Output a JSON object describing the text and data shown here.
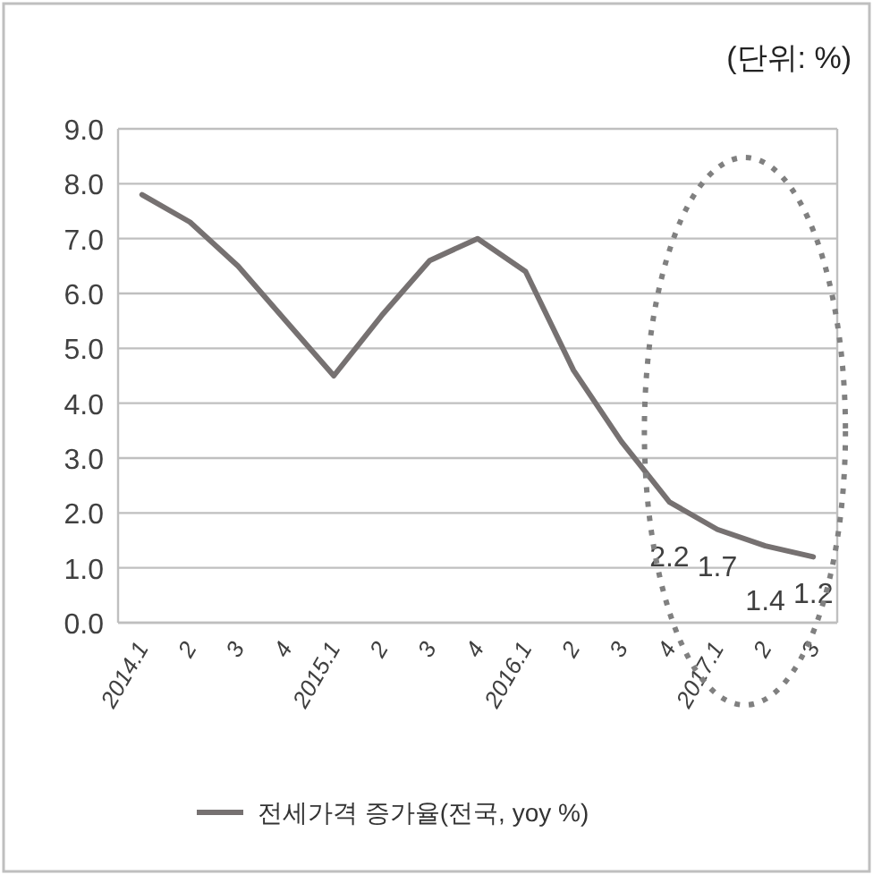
{
  "chart_data": {
    "type": "line",
    "annotations": [
      "(단위: %)"
    ],
    "categories": [
      "2014.1",
      "2",
      "3",
      "4",
      "2015.1",
      "2",
      "3",
      "4",
      "2016.1",
      "2",
      "3",
      "4",
      "2017.1",
      "2",
      "3"
    ],
    "series": [
      {
        "name": "전세가격 증가율(전국, yoy %)",
        "color": "#767171",
        "values": [
          7.8,
          7.3,
          6.5,
          5.5,
          4.5,
          5.6,
          6.6,
          7.0,
          6.4,
          4.6,
          3.3,
          2.2,
          1.7,
          1.4,
          1.2
        ],
        "value_labels": [
          null,
          null,
          null,
          null,
          null,
          null,
          null,
          null,
          null,
          null,
          null,
          "2.2",
          "1.7",
          "1.4",
          "1.2"
        ]
      }
    ],
    "ylim": [
      0,
      9
    ],
    "yticks": [
      {
        "value": 0,
        "label": "0.0"
      },
      {
        "value": 1,
        "label": "1.0"
      },
      {
        "value": 2,
        "label": "2.0"
      },
      {
        "value": 3,
        "label": "3.0"
      },
      {
        "value": 4,
        "label": "4.0"
      },
      {
        "value": 5,
        "label": "5.0"
      },
      {
        "value": 6,
        "label": "6.0"
      },
      {
        "value": 7,
        "label": "7.0"
      },
      {
        "value": 8,
        "label": "8.0"
      },
      {
        "value": 9,
        "label": "9.0"
      }
    ],
    "grid": "y",
    "legend": "bottom",
    "marker": "none",
    "line_style": "solid"
  }
}
